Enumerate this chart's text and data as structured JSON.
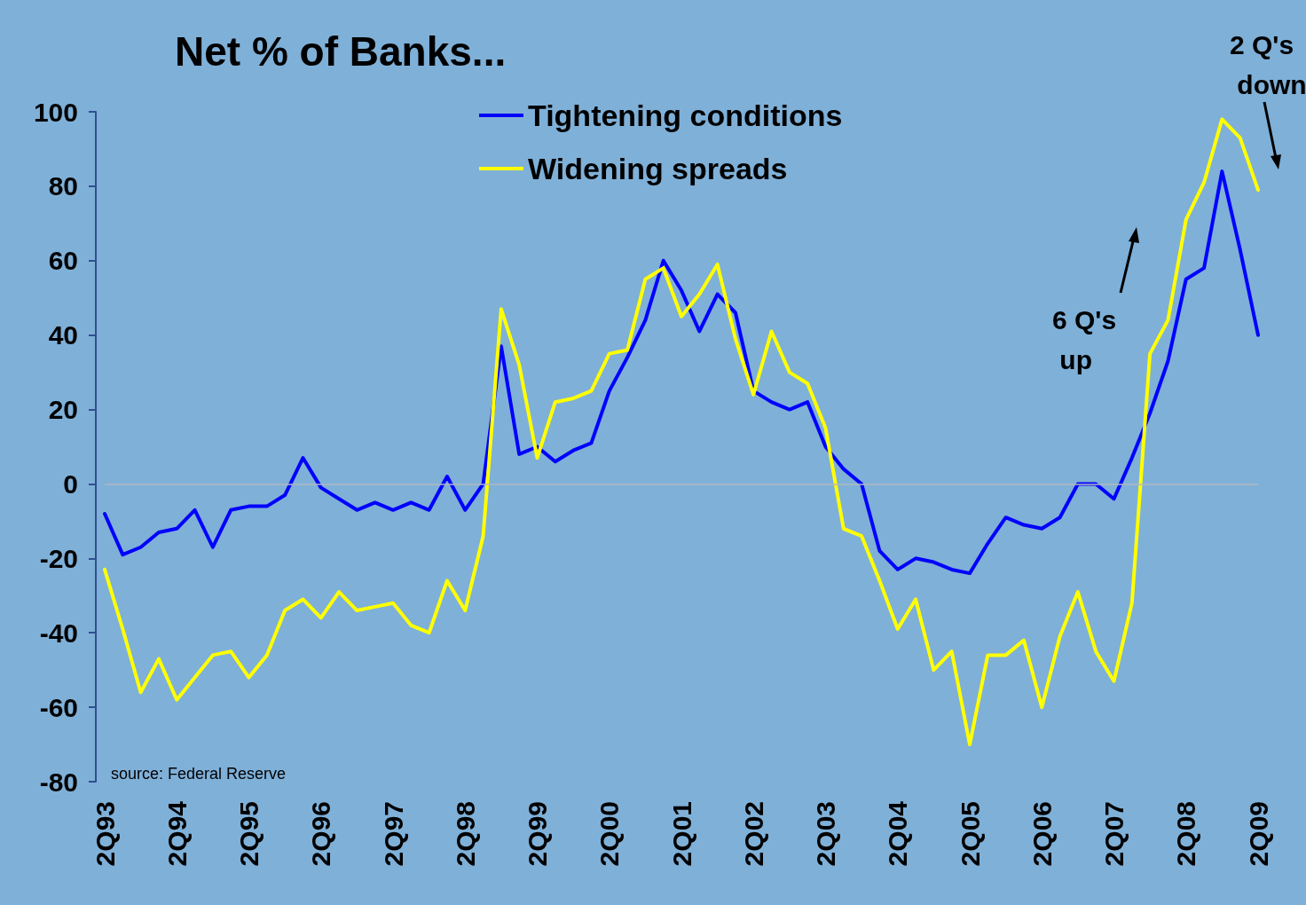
{
  "chart_data": {
    "type": "line",
    "title": "Net % of Banks...",
    "categories": [
      "2Q93",
      null,
      null,
      null,
      "2Q94",
      null,
      null,
      null,
      "2Q95",
      null,
      null,
      null,
      "2Q96",
      null,
      null,
      null,
      "2Q97",
      null,
      null,
      null,
      "2Q98",
      null,
      null,
      null,
      "2Q99",
      null,
      null,
      null,
      "2Q00",
      null,
      null,
      null,
      "2Q01",
      null,
      null,
      null,
      "2Q02",
      null,
      null,
      null,
      "2Q03",
      null,
      null,
      null,
      "2Q04",
      null,
      null,
      null,
      "2Q05",
      null,
      null,
      null,
      "2Q06",
      null,
      null,
      null,
      "2Q07",
      null,
      null,
      null,
      "2Q08",
      null,
      null,
      null,
      "2Q09"
    ],
    "series": [
      {
        "name": "Tightening conditions",
        "color": "#0000ff",
        "values": [
          -8,
          -19,
          -17,
          -13,
          -12,
          -7,
          -17,
          -7,
          -6,
          -6,
          -3,
          7,
          -1,
          -4,
          -7,
          -5,
          -7,
          -5,
          -7,
          2,
          -7,
          0,
          37,
          8,
          10,
          6,
          9,
          11,
          25,
          34,
          44,
          60,
          52,
          41,
          51,
          46,
          25,
          22,
          20,
          22,
          10,
          4,
          0,
          -18,
          -23,
          -20,
          -21,
          -23,
          -24,
          -16,
          -9,
          -11,
          -12,
          -9,
          0,
          0,
          -4,
          7,
          19,
          33,
          55,
          58,
          84,
          63,
          40
        ]
      },
      {
        "name": "Widening spreads",
        "color": "#ffff00",
        "values": [
          -23,
          -39,
          -56,
          -47,
          -58,
          -52,
          -46,
          -45,
          -52,
          -46,
          -34,
          -31,
          -36,
          -29,
          -34,
          -33,
          -32,
          -38,
          -40,
          -26,
          -34,
          -14,
          47,
          32,
          7,
          22,
          23,
          25,
          35,
          36,
          55,
          58,
          45,
          51,
          59,
          39,
          24,
          41,
          30,
          27,
          15,
          -12,
          -14,
          -26,
          -39,
          -31,
          -50,
          -45,
          -70,
          -46,
          -46,
          -42,
          -60,
          -41,
          -29,
          -45,
          -53,
          -32,
          35,
          44,
          71,
          81,
          98,
          93,
          79
        ]
      }
    ],
    "ylim": [
      -80,
      100
    ],
    "yticks": [
      -80,
      -60,
      -40,
      -20,
      0,
      20,
      40,
      60,
      80,
      100
    ],
    "ref_lines": [
      {
        "axis": "y",
        "value": 0,
        "color": "#b0b8c0"
      }
    ],
    "annotations": [
      "6 Q's up",
      "2 Q's down",
      "source: Federal Reserve"
    ],
    "legend": "top",
    "grid": false,
    "marker": "none",
    "line_style": "solid"
  }
}
